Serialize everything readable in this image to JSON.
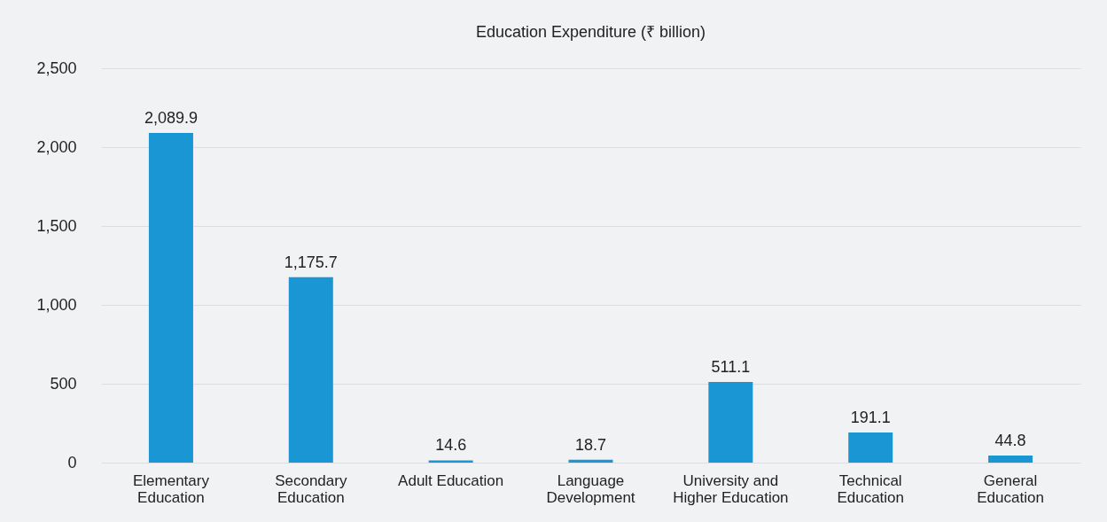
{
  "chart_data": {
    "type": "bar",
    "title": "Education Expenditure (₹ billion)",
    "categories": [
      "Elementary Education",
      "Secondary Education",
      "Adult Education",
      "Language Development",
      "University and Higher Education",
      "Technical Education",
      "General Education"
    ],
    "values": [
      2089.9,
      1175.7,
      14.6,
      18.7,
      511.1,
      191.1,
      44.8
    ],
    "value_labels": [
      "2,089.9",
      "1,175.7",
      "14.6",
      "18.7",
      "511.1",
      "191.1",
      "44.8"
    ],
    "color": "#1a96d5",
    "ylim": [
      0,
      2500
    ],
    "yticks": [
      0,
      {
        "value": 500,
        "label": "500"
      },
      {
        "value": 1000,
        "label": "1,000"
      },
      {
        "value": 1500,
        "label": "1,500"
      },
      {
        "value": 2000,
        "label": "2,000"
      },
      {
        "value": 2500,
        "label": "2,500"
      }
    ],
    "grid": "y"
  }
}
